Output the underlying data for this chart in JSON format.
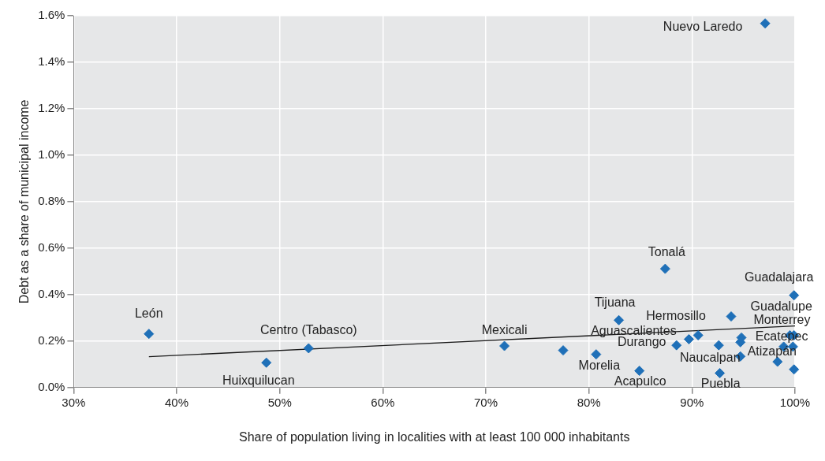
{
  "chart_data": {
    "type": "scatter",
    "xlabel": "Share of population living in localities with at least 100 000 inhabitants",
    "ylabel": "Debt as a share of municipal income",
    "x": [
      37.3,
      48.7,
      52.8,
      71.8,
      77.5,
      80.7,
      82.9,
      84.9,
      87.4,
      88.5,
      89.7,
      90.6,
      92.6,
      92.7,
      93.8,
      94.8,
      94.7,
      94.7,
      98.3,
      99.9,
      99.9,
      99.5,
      99.9,
      98.9,
      99.8,
      97.1
    ],
    "series": [
      {
        "color": "#1f70b8",
        "values": [
          0.231,
          0.107,
          0.169,
          0.179,
          0.16,
          0.143,
          0.29,
          0.072,
          0.511,
          0.182,
          0.208,
          0.225,
          0.182,
          0.062,
          0.306,
          0.215,
          0.195,
          0.134,
          0.111,
          0.397,
          0.078,
          0.225,
          0.225,
          0.176,
          0.176,
          1.567
        ]
      },
      {
        "type": "line",
        "color": "#1a1a1a",
        "x": [
          37.3,
          100
        ],
        "values": [
          0.133,
          0.265
        ],
        "marker": "none"
      }
    ],
    "xlim": [
      30,
      100
    ],
    "xticks": [
      {
        "value": 30,
        "label": "30%"
      },
      {
        "value": 40,
        "label": "40%"
      },
      {
        "value": 50,
        "label": "50%"
      },
      {
        "value": 60,
        "label": "60%"
      },
      {
        "value": 70,
        "label": "70%"
      },
      {
        "value": 80,
        "label": "80%"
      },
      {
        "value": 90,
        "label": "90%"
      },
      {
        "value": 100,
        "label": "100%"
      }
    ],
    "ylim": [
      0,
      1.6
    ],
    "yticks": [
      {
        "value": 0,
        "label": "0.0%"
      },
      {
        "value": 0.2,
        "label": "0.2%"
      },
      {
        "value": 0.4,
        "label": "0.4%"
      },
      {
        "value": 0.6,
        "label": "0.6%"
      },
      {
        "value": 0.8,
        "label": "0.8%"
      },
      {
        "value": 1,
        "label": "1.0%"
      },
      {
        "value": 1.2,
        "label": "1.2%"
      },
      {
        "value": 1.4,
        "label": "1.4%"
      },
      {
        "value": 1.6,
        "label": "1.6%"
      }
    ],
    "grid": true,
    "legend": false,
    "marker": "diamond",
    "annotations": [
      {
        "text": "León",
        "x": 37.3,
        "y": 0.231
      },
      {
        "text": "Huixquilucan",
        "x": 48.7,
        "y": 0.107
      },
      {
        "text": "Centro (Tabasco)",
        "x": 52.8,
        "y": 0.169
      },
      {
        "text": "Mexicali",
        "x": 71.8,
        "y": 0.179
      },
      {
        "text": "Morelia",
        "x": 80.7,
        "y": 0.143
      },
      {
        "text": "Tijuana",
        "x": 82.9,
        "y": 0.29
      },
      {
        "text": "Acapulco",
        "x": 84.9,
        "y": 0.072
      },
      {
        "text": "Tonalá",
        "x": 87.4,
        "y": 0.511
      },
      {
        "text": "Aguascalientes",
        "x": 89.7,
        "y": 0.208
      },
      {
        "text": "Durango",
        "x": 88.5,
        "y": 0.182
      },
      {
        "text": "Naucalpan",
        "x": 92.6,
        "y": 0.182
      },
      {
        "text": "Puebla",
        "x": 92.7,
        "y": 0.062
      },
      {
        "text": "Hermosillo",
        "x": 93.8,
        "y": 0.306
      },
      {
        "text": "Guadalajara",
        "x": 99.9,
        "y": 0.397
      },
      {
        "text": "Guadalupe",
        "x": 99.9,
        "y": 0.225
      },
      {
        "text": "Monterrey",
        "x": 99.5,
        "y": 0.225
      },
      {
        "text": "Ecatepec",
        "x": 94.8,
        "y": 0.215
      },
      {
        "text": "Atizapán",
        "x": 98.3,
        "y": 0.111
      },
      {
        "text": "Nuevo Laredo",
        "x": 97.1,
        "y": 1.567
      }
    ]
  }
}
